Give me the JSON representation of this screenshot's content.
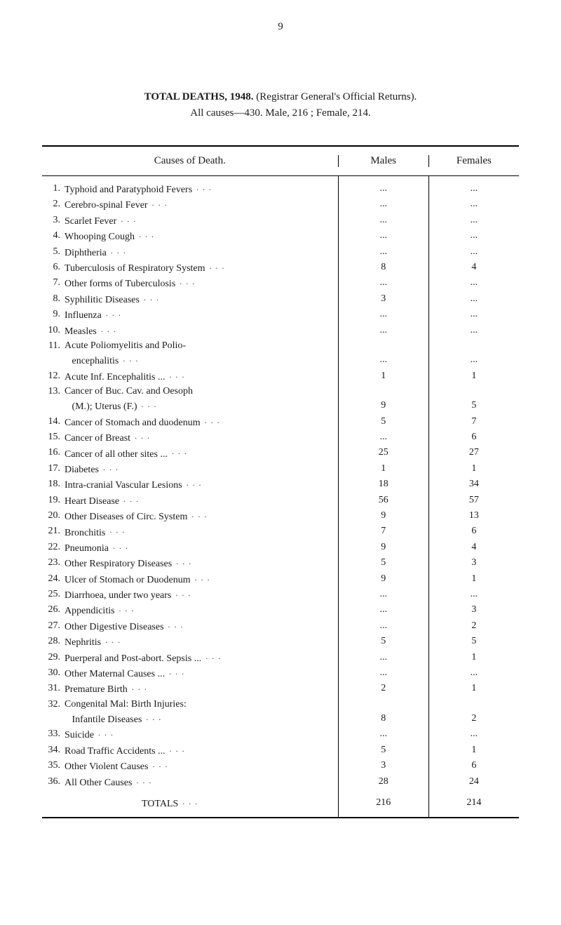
{
  "pageNumber": "9",
  "title": {
    "strong": "TOTAL DEATHS, 1948.",
    "rest": " (Registrar General's Official Returns).",
    "line2": "All causes—430.   Male, 216 ;   Female, 214."
  },
  "headers": {
    "cause": "Causes of Death.",
    "males": "Males",
    "females": "Females"
  },
  "rows": [
    {
      "n": "1.",
      "label": "Typhoid and Paratyphoid Fevers",
      "males": "...",
      "females": "..."
    },
    {
      "n": "2.",
      "label": "Cerebro-spinal Fever",
      "males": "...",
      "females": "..."
    },
    {
      "n": "3.",
      "label": "Scarlet Fever",
      "males": "...",
      "females": "..."
    },
    {
      "n": "4.",
      "label": "Whooping Cough",
      "males": "...",
      "females": "..."
    },
    {
      "n": "5.",
      "label": "Diphtheria",
      "males": "...",
      "females": "..."
    },
    {
      "n": "6.",
      "label": "Tuberculosis of Respiratory System",
      "males": "8",
      "females": "4"
    },
    {
      "n": "7.",
      "label": "Other forms of Tuberculosis",
      "males": "...",
      "females": "..."
    },
    {
      "n": "8.",
      "label": "Syphilitic Diseases",
      "males": "3",
      "females": "..."
    },
    {
      "n": "9.",
      "label": "Influenza",
      "males": "...",
      "females": "..."
    },
    {
      "n": "10.",
      "label": "Measles",
      "males": "...",
      "females": "..."
    },
    {
      "n": "11.",
      "label": "Acute Poliomyelitis and Polio-",
      "males": "",
      "females": ""
    },
    {
      "n": "",
      "label": "   encephalitis",
      "males": "...",
      "females": "...",
      "cont": true
    },
    {
      "n": "12.",
      "label": "Acute Inf. Encephalitis ...",
      "males": "1",
      "females": "1"
    },
    {
      "n": "13.",
      "label": "Cancer of Buc. Cav. and Oesoph",
      "males": "",
      "females": ""
    },
    {
      "n": "",
      "label": "   (M.); Uterus (F.)",
      "males": "9",
      "females": "5",
      "cont": true
    },
    {
      "n": "14.",
      "label": "Cancer of Stomach and duodenum",
      "males": "5",
      "females": "7"
    },
    {
      "n": "15.",
      "label": "Cancer of Breast",
      "males": "...",
      "females": "6"
    },
    {
      "n": "16.",
      "label": "Cancer of all other sites ...",
      "males": "25",
      "females": "27"
    },
    {
      "n": "17.",
      "label": "Diabetes",
      "males": "1",
      "females": "1"
    },
    {
      "n": "18.",
      "label": "Intra-cranial Vascular Lesions",
      "males": "18",
      "females": "34"
    },
    {
      "n": "19.",
      "label": "Heart Disease",
      "males": "56",
      "females": "57"
    },
    {
      "n": "20.",
      "label": "Other Diseases of Circ. System",
      "males": "9",
      "females": "13"
    },
    {
      "n": "21.",
      "label": "Bronchitis",
      "males": "7",
      "females": "6"
    },
    {
      "n": "22.",
      "label": "Pneumonia",
      "males": "9",
      "females": "4"
    },
    {
      "n": "23.",
      "label": "Other Respiratory Diseases",
      "males": "5",
      "females": "3"
    },
    {
      "n": "24.",
      "label": "Ulcer of Stomach or Duodenum",
      "males": "9",
      "females": "1"
    },
    {
      "n": "25.",
      "label": "Diarrhoea, under two years",
      "males": "...",
      "females": "..."
    },
    {
      "n": "26.",
      "label": "Appendicitis",
      "males": "...",
      "females": "3"
    },
    {
      "n": "27.",
      "label": "Other Digestive Diseases",
      "males": "...",
      "females": "2"
    },
    {
      "n": "28.",
      "label": "Nephritis",
      "males": "5",
      "females": "5"
    },
    {
      "n": "29.",
      "label": "Puerperal and Post-abort. Sepsis ...",
      "males": "...",
      "females": "1"
    },
    {
      "n": "30.",
      "label": "Other Maternal Causes ...",
      "males": "...",
      "females": "..."
    },
    {
      "n": "31.",
      "label": "Premature Birth",
      "males": "2",
      "females": "1"
    },
    {
      "n": "32.",
      "label": "Congenital Mal: Birth Injuries:",
      "males": "",
      "females": ""
    },
    {
      "n": "",
      "label": "   Infantile Diseases",
      "males": "8",
      "females": "2",
      "cont": true
    },
    {
      "n": "33.",
      "label": "Suicide",
      "males": "...",
      "females": "..."
    },
    {
      "n": "34.",
      "label": "Road Traffic Accidents ...",
      "males": "5",
      "females": "1"
    },
    {
      "n": "35.",
      "label": "Other Violent Causes",
      "males": "3",
      "females": "6"
    },
    {
      "n": "36.",
      "label": "All Other Causes",
      "males": "28",
      "females": "24"
    }
  ],
  "totals": {
    "label": "TOTALS",
    "males": "216",
    "females": "214"
  },
  "leaderDots": "..."
}
